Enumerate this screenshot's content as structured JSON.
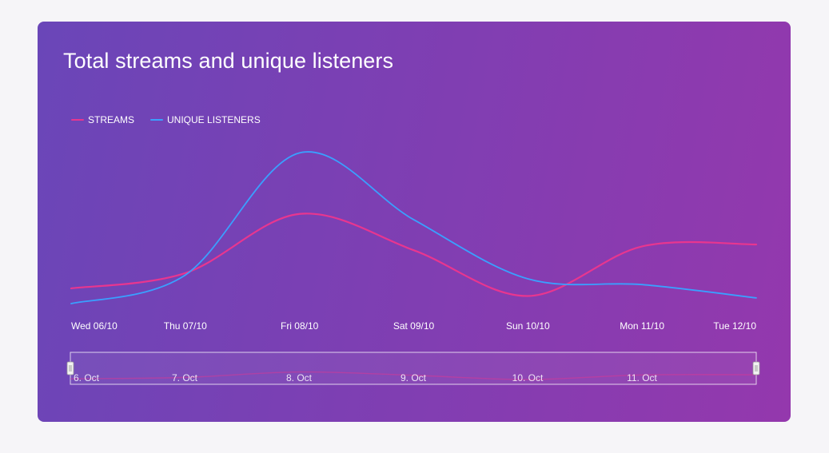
{
  "chart_data": {
    "type": "line",
    "title": "Total streams and unique listeners",
    "x": [
      "Wed 06/10",
      "Thu 07/10",
      "Fri 08/10",
      "Sat 09/10",
      "Sun 10/10",
      "Mon 11/10",
      "Tue 12/10"
    ],
    "series": [
      {
        "name": "STREAMS",
        "color": "#e8368f",
        "values": [
          8,
          16,
          47,
          28,
          4,
          30,
          31
        ]
      },
      {
        "name": "UNIQUE LISTENERS",
        "color": "#3aa0ff",
        "values": [
          0,
          15,
          79,
          44,
          13,
          10,
          3
        ]
      }
    ],
    "ylim": [
      -5,
      85
    ],
    "grid": false,
    "legend": "top-left",
    "navigator": {
      "labels": [
        "6. Oct",
        "7. Oct",
        "8. Oct",
        "9. Oct",
        "10. Oct",
        "11. Oct"
      ],
      "series": "STREAMS"
    }
  }
}
